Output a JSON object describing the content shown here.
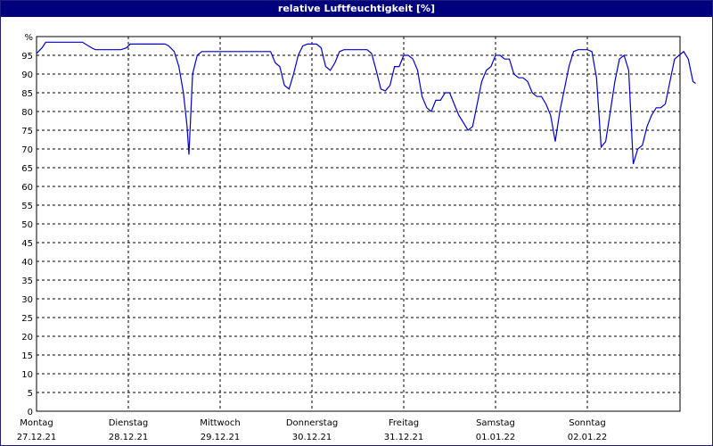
{
  "window": {
    "title": "relative Luftfeuchtigkeit [%]"
  },
  "chart_data": {
    "type": "line",
    "title": "relative Luftfeuchtigkeit [%]",
    "ylabel": "%",
    "ylim": [
      0,
      100
    ],
    "yticks": [
      0,
      5,
      10,
      15,
      20,
      25,
      30,
      35,
      40,
      45,
      50,
      55,
      60,
      65,
      70,
      75,
      80,
      85,
      90,
      95
    ],
    "xlim": [
      0,
      7
    ],
    "grid": true,
    "day_labels": [
      {
        "weekday": "Montag",
        "date": "27.12.21"
      },
      {
        "weekday": "Dienstag",
        "date": "28.12.21"
      },
      {
        "weekday": "Mittwoch",
        "date": "29.12.21"
      },
      {
        "weekday": "Donnerstag",
        "date": "30.12.21"
      },
      {
        "weekday": "Freitag",
        "date": "31.12.21"
      },
      {
        "weekday": "Samstag",
        "date": "01.01.22"
      },
      {
        "weekday": "Sonntag",
        "date": "02.01.22"
      }
    ],
    "series": [
      {
        "color": "#0000cc",
        "x": [
          0.0,
          0.06,
          0.1,
          0.18,
          0.3,
          0.5,
          0.6,
          0.64,
          0.68,
          0.8,
          0.92,
          0.98,
          1.02,
          1.06,
          1.2,
          1.4,
          1.44,
          1.5,
          1.55,
          1.6,
          1.64,
          1.66,
          1.7,
          1.75,
          1.8,
          1.9,
          2.05,
          2.4,
          2.55,
          2.6,
          2.65,
          2.7,
          2.75,
          2.8,
          2.85,
          2.9,
          2.95,
          3.0,
          3.05,
          3.1,
          3.15,
          3.2,
          3.25,
          3.3,
          3.35,
          3.4,
          3.5,
          3.6,
          3.65,
          3.7,
          3.75,
          3.8,
          3.85,
          3.9,
          3.95,
          4.0,
          4.05,
          4.1,
          4.15,
          4.2,
          4.25,
          4.3,
          4.35,
          4.4,
          4.45,
          4.5,
          4.55,
          4.6,
          4.65,
          4.7,
          4.75,
          4.8,
          4.85,
          4.9,
          4.95,
          5.0,
          5.05,
          5.1,
          5.15,
          5.2,
          5.25,
          5.3,
          5.35,
          5.4,
          5.45,
          5.5,
          5.55,
          5.6,
          5.65,
          5.7,
          5.75,
          5.8,
          5.85,
          5.9,
          5.95,
          6.0,
          6.05,
          6.1,
          6.15,
          6.2,
          6.25,
          6.3,
          6.35,
          6.4,
          6.45,
          6.5,
          6.55,
          6.6,
          6.65,
          6.7,
          6.75,
          6.8,
          6.85,
          6.9,
          6.95,
          7.0,
          7.05,
          7.1,
          7.15,
          7.18
        ],
        "values": [
          95.5,
          97,
          98.5,
          98.5,
          98.5,
          98.5,
          97,
          96.5,
          96.5,
          96.5,
          96.5,
          97,
          98,
          98,
          98,
          98,
          97.5,
          96,
          92,
          85,
          76,
          68.5,
          90,
          95,
          96,
          96,
          96,
          96,
          96,
          93,
          92,
          87,
          86,
          90,
          95,
          97.5,
          98,
          98,
          98,
          97,
          92,
          91,
          93,
          96,
          96.5,
          96.5,
          96.5,
          96.5,
          95.5,
          91,
          86,
          85.5,
          87,
          92,
          92,
          95,
          95,
          94,
          91,
          84,
          81,
          80,
          83,
          83,
          85,
          85,
          82,
          79,
          77,
          75,
          76,
          82,
          88,
          91,
          92,
          95,
          95,
          94,
          94,
          90,
          89,
          89,
          88,
          85,
          84,
          84,
          82,
          79,
          72,
          80,
          86,
          92,
          96,
          96.5,
          96.5,
          96.5,
          96,
          89,
          70.5,
          72,
          80,
          88,
          94,
          95,
          91,
          66,
          70,
          71,
          76,
          79,
          81,
          81,
          82,
          88,
          94,
          95,
          96,
          94,
          88,
          87.5
        ]
      }
    ]
  }
}
